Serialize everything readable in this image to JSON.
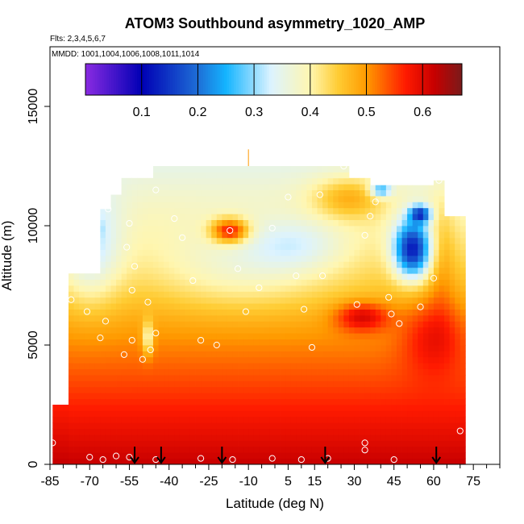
{
  "chart_data": {
    "type": "heatmap",
    "title": "ATOM3 Southbound asymmetry_1020_AMP",
    "flights_label": "Flts: 2,3,4,5,6,7",
    "dates_label": "MMDD: 1001,1004,1006,1008,1011,1014",
    "xlabel": "Latitude (deg N)",
    "ylabel": "Altitude (m)",
    "xlim": [
      -85,
      85
    ],
    "ylim": [
      0,
      17500
    ],
    "x_ticks": [
      -85,
      -70,
      -55,
      -40,
      -25,
      -10,
      5,
      15,
      30,
      45,
      60,
      75
    ],
    "y_ticks": [
      0,
      5000,
      10000,
      15000
    ],
    "colorbar": {
      "range": [
        0,
        0.67
      ],
      "ticks": [
        0.1,
        0.2,
        0.3,
        0.4,
        0.5,
        0.6
      ],
      "stops": [
        {
          "v": 0.0,
          "c": "#8a2be2"
        },
        {
          "v": 0.1,
          "c": "#0000b4"
        },
        {
          "v": 0.2,
          "c": "#1e6ed6"
        },
        {
          "v": 0.25,
          "c": "#14b4ff"
        },
        {
          "v": 0.33,
          "c": "#dcf3ff"
        },
        {
          "v": 0.4,
          "c": "#fff6b0"
        },
        {
          "v": 0.45,
          "c": "#ffcc33"
        },
        {
          "v": 0.5,
          "c": "#ff9a00"
        },
        {
          "v": 0.57,
          "c": "#ff1a00"
        },
        {
          "v": 0.62,
          "c": "#c80000"
        },
        {
          "v": 0.67,
          "c": "#7a1a1a"
        }
      ]
    },
    "profile_arrows_lat": [
      -53,
      -43,
      -20,
      19,
      61
    ],
    "sample_points": [
      {
        "x": -72,
        "y": 9900
      },
      {
        "x": -63,
        "y": 10700
      },
      {
        "x": -55,
        "y": 10100
      },
      {
        "x": -56,
        "y": 9100
      },
      {
        "x": -53,
        "y": 8300
      },
      {
        "x": -54,
        "y": 7300
      },
      {
        "x": -48,
        "y": 6800
      },
      {
        "x": -45,
        "y": 5500
      },
      {
        "x": -47,
        "y": 4800
      },
      {
        "x": -50,
        "y": 4400
      },
      {
        "x": -54,
        "y": 5200
      },
      {
        "x": -57,
        "y": 4600
      },
      {
        "x": -64,
        "y": 6000
      },
      {
        "x": -66,
        "y": 5300
      },
      {
        "x": -71,
        "y": 6400
      },
      {
        "x": -77,
        "y": 6900
      },
      {
        "x": -45,
        "y": 11500
      },
      {
        "x": -38,
        "y": 10300
      },
      {
        "x": -35,
        "y": 9500
      },
      {
        "x": -31,
        "y": 7700
      },
      {
        "x": -28,
        "y": 5200
      },
      {
        "x": -22,
        "y": 5000
      },
      {
        "x": -17,
        "y": 9800
      },
      {
        "x": -14,
        "y": 8200
      },
      {
        "x": -11,
        "y": 6400
      },
      {
        "x": -6,
        "y": 7400
      },
      {
        "x": -1,
        "y": 9900
      },
      {
        "x": 5,
        "y": 11200
      },
      {
        "x": 8,
        "y": 7900
      },
      {
        "x": 11,
        "y": 6500
      },
      {
        "x": 14,
        "y": 4900
      },
      {
        "x": 17,
        "y": 11300
      },
      {
        "x": 18,
        "y": 7900
      },
      {
        "x": 26,
        "y": 12500
      },
      {
        "x": 31,
        "y": 6700
      },
      {
        "x": 34,
        "y": 9600
      },
      {
        "x": 36,
        "y": 10400
      },
      {
        "x": 38,
        "y": 11000
      },
      {
        "x": 43,
        "y": 7000
      },
      {
        "x": 44,
        "y": 6300
      },
      {
        "x": 47,
        "y": 5900
      },
      {
        "x": 55,
        "y": 6600
      },
      {
        "x": 60,
        "y": 7800
      },
      {
        "x": 62,
        "y": 11900
      },
      {
        "x": 66,
        "y": 11800
      },
      {
        "x": 70,
        "y": 1400
      },
      {
        "x": 34,
        "y": 900
      },
      {
        "x": 34,
        "y": 600
      },
      {
        "x": -84,
        "y": 900
      },
      {
        "x": -70,
        "y": 300
      },
      {
        "x": -65,
        "y": 200
      },
      {
        "x": -60,
        "y": 350
      },
      {
        "x": -55,
        "y": 300
      },
      {
        "x": -45,
        "y": 200
      },
      {
        "x": -28,
        "y": 250
      },
      {
        "x": -16,
        "y": 200
      },
      {
        "x": -1,
        "y": 250
      },
      {
        "x": 10,
        "y": 200
      },
      {
        "x": 20,
        "y": 250
      },
      {
        "x": 45,
        "y": 200
      }
    ]
  }
}
